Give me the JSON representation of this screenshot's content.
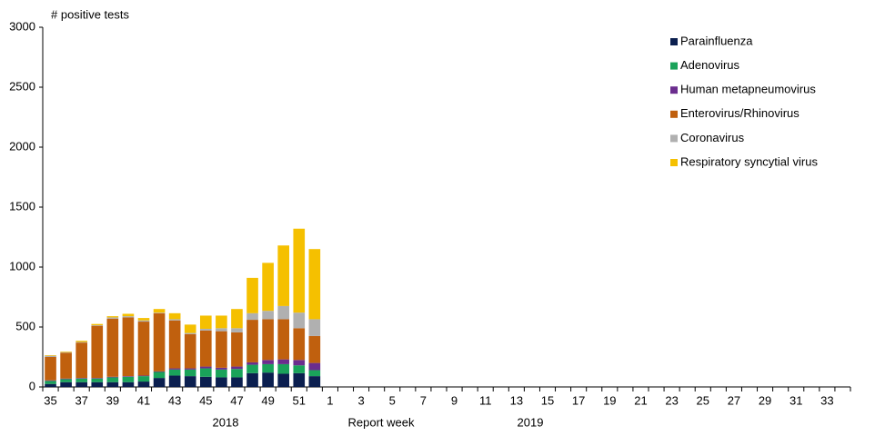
{
  "chart_data": {
    "type": "stacked-bar",
    "y_label": "# positive tests",
    "x_label": "Report week",
    "year_labels": [
      "2018",
      "2019"
    ],
    "categories": [
      "35",
      null,
      "37",
      null,
      "39",
      null,
      "41",
      null,
      "43",
      null,
      "45",
      null,
      "47",
      null,
      "49",
      null,
      "51",
      null,
      "1",
      null,
      "3",
      null,
      "5",
      null,
      "7",
      null,
      "9",
      null,
      "11",
      null,
      "13",
      null,
      "15",
      null,
      "17",
      null,
      "19",
      null,
      "21",
      null,
      "23",
      null,
      "25",
      null,
      "27",
      null,
      "29",
      null,
      "31",
      null,
      "33",
      null
    ],
    "ylim": [
      0,
      3000
    ],
    "yticks": [
      0,
      500,
      1000,
      1500,
      2000,
      2500,
      3000
    ],
    "grid": false,
    "legend": "upper right",
    "series": [
      {
        "name": "Parainfluenza",
        "color": "#0b1f4f",
        "values": [
          25,
          40,
          40,
          40,
          40,
          40,
          45,
          75,
          95,
          90,
          85,
          80,
          80,
          115,
          120,
          110,
          115,
          90,
          null,
          null,
          null,
          null,
          null,
          null,
          null,
          null,
          null,
          null,
          null,
          null,
          null,
          null,
          null,
          null,
          null,
          null,
          null,
          null,
          null,
          null,
          null,
          null,
          null,
          null,
          null,
          null,
          null,
          null,
          null,
          null,
          null,
          null
        ]
      },
      {
        "name": "Adenovirus",
        "color": "#1aa35a",
        "values": [
          25,
          25,
          30,
          30,
          40,
          45,
          45,
          50,
          50,
          55,
          70,
          65,
          70,
          70,
          70,
          80,
          65,
          50,
          null,
          null,
          null,
          null,
          null,
          null,
          null,
          null,
          null,
          null,
          null,
          null,
          null,
          null,
          null,
          null,
          null,
          null,
          null,
          null,
          null,
          null,
          null,
          null,
          null,
          null,
          null,
          null,
          null,
          null,
          null,
          null,
          null,
          null
        ]
      },
      {
        "name": "Human metapneumovirus",
        "color": "#6b2d8e",
        "values": [
          5,
          5,
          5,
          5,
          5,
          5,
          5,
          5,
          10,
          10,
          15,
          15,
          20,
          20,
          35,
          40,
          45,
          60,
          null,
          null,
          null,
          null,
          null,
          null,
          null,
          null,
          null,
          null,
          null,
          null,
          null,
          null,
          null,
          null,
          null,
          null,
          null,
          null,
          null,
          null,
          null,
          null,
          null,
          null,
          null,
          null,
          null,
          null,
          null,
          null,
          null,
          null
        ]
      },
      {
        "name": "Enterovirus/Rhinovirus",
        "color": "#c0600e",
        "values": [
          195,
          215,
          295,
          435,
          485,
          490,
          450,
          485,
          400,
          285,
          300,
          305,
          285,
          355,
          340,
          335,
          265,
          225,
          null,
          null,
          null,
          null,
          null,
          null,
          null,
          null,
          null,
          null,
          null,
          null,
          null,
          null,
          null,
          null,
          null,
          null,
          null,
          null,
          null,
          null,
          null,
          null,
          null,
          null,
          null,
          null,
          null,
          null,
          null,
          null,
          null,
          null
        ]
      },
      {
        "name": "Coronavirus",
        "color": "#b0b0b0",
        "values": [
          10,
          5,
          5,
          5,
          10,
          10,
          10,
          5,
          10,
          10,
          15,
          25,
          35,
          55,
          70,
          110,
          130,
          140,
          null,
          null,
          null,
          null,
          null,
          null,
          null,
          null,
          null,
          null,
          null,
          null,
          null,
          null,
          null,
          null,
          null,
          null,
          null,
          null,
          null,
          null,
          null,
          null,
          null,
          null,
          null,
          null,
          null,
          null,
          null,
          null,
          null,
          null
        ]
      },
      {
        "name": "Respiratory syncytial virus",
        "color": "#f5c000",
        "values": [
          5,
          5,
          10,
          10,
          10,
          20,
          20,
          30,
          50,
          70,
          110,
          105,
          160,
          295,
          400,
          505,
          700,
          585,
          null,
          null,
          null,
          null,
          null,
          null,
          null,
          null,
          null,
          null,
          null,
          null,
          null,
          null,
          null,
          null,
          null,
          null,
          null,
          null,
          null,
          null,
          null,
          null,
          null,
          null,
          null,
          null,
          null,
          null,
          null,
          null,
          null,
          null
        ]
      }
    ]
  }
}
